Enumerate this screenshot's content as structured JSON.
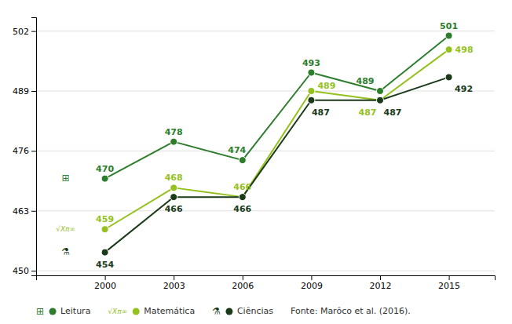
{
  "chart_data": {
    "type": "line",
    "x": [
      2000,
      2003,
      2006,
      2009,
      2012,
      2015
    ],
    "xlim": [
      1997,
      2017
    ],
    "xticks": [
      2000,
      2003,
      2006,
      2009,
      2012,
      2015
    ],
    "ylim": [
      449,
      505
    ],
    "yticks": [
      450,
      463,
      476,
      489,
      502
    ],
    "grid": true,
    "legend": "bottom",
    "data_labels": true,
    "marker": "circle",
    "series": [
      {
        "name": "Leitura",
        "color": "#2d7d2d",
        "values": [
          470,
          478,
          474,
          493,
          489,
          501
        ]
      },
      {
        "name": "Matemática",
        "color": "#95c11f",
        "values": [
          459,
          468,
          466,
          489,
          487,
          498
        ]
      },
      {
        "name": "Ciências",
        "color": "#1a3a1a",
        "values": [
          454,
          466,
          466,
          487,
          487,
          492
        ]
      }
    ],
    "annotations": [
      "⊞",
      "√Xπ∞",
      "⚗",
      "Fonte: Marôco et al. (2016)."
    ]
  }
}
